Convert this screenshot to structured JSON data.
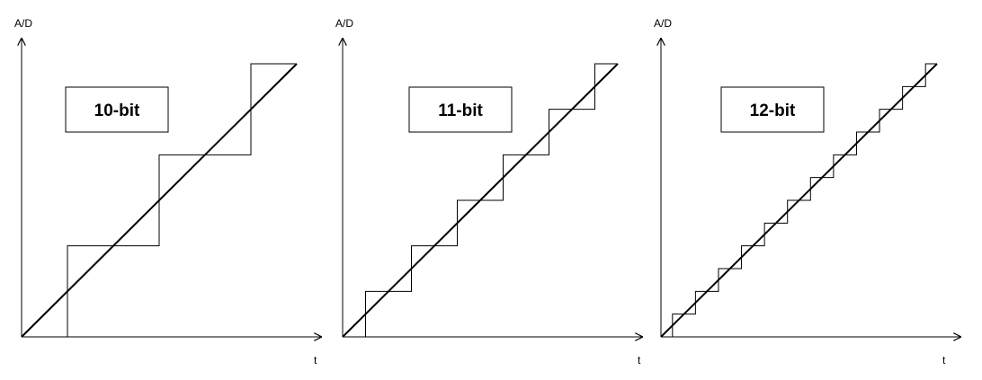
{
  "figure": {
    "panels": [
      {
        "label": "10-bit",
        "steps": 3,
        "y_axis_label": "A/D",
        "x_axis_label": "t"
      },
      {
        "label": "11-bit",
        "steps": 6,
        "y_axis_label": "A/D",
        "x_axis_label": "t"
      },
      {
        "label": "12-bit",
        "steps": 12,
        "y_axis_label": "A/D",
        "x_axis_label": "t"
      }
    ],
    "colors": {
      "line": "#000000",
      "background": "#ffffff"
    }
  }
}
